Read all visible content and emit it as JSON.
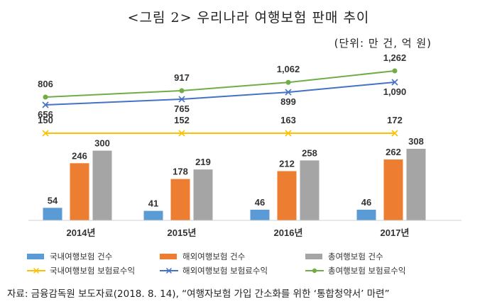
{
  "title": "<그림 2> 우리나라 여행보험 판매 추이",
  "unit": "(단위: 만 건, 억 원)",
  "source": "자료: 금융감독원 보도자료(2018. 8. 14), “여행자보험 가입 간소화를 위한 ‘통합청약서’ 마련”",
  "chart_data": {
    "type": "bar",
    "categories": [
      "2014년",
      "2015년",
      "2016년",
      "2017년"
    ],
    "bar_series": [
      {
        "name": "국내여행보험 건수",
        "color": "#5b9bd5",
        "values": [
          54,
          41,
          46,
          46
        ]
      },
      {
        "name": "해외여행보험 건수",
        "color": "#ed7d31",
        "values": [
          246,
          178,
          212,
          262
        ]
      },
      {
        "name": "총여행보험 건수",
        "color": "#a5a5a5",
        "values": [
          300,
          219,
          258,
          308
        ]
      }
    ],
    "line_series": [
      {
        "name": "국내여행보험 보험료수익",
        "color": "#ffc000",
        "marker": "x",
        "values": [
          150,
          152,
          163,
          172
        ]
      },
      {
        "name": "해외여행보험 보험료수익",
        "color": "#4472c4",
        "marker": "x",
        "values": [
          656,
          765,
          899,
          1090
        ],
        "labels": [
          "656",
          "765",
          "899",
          "1,090"
        ]
      },
      {
        "name": "총여행보험 보험료수익",
        "color": "#70ad47",
        "marker": "circle",
        "values": [
          806,
          917,
          1062,
          1262
        ],
        "labels": [
          "806",
          "917",
          "1,062",
          "1,262"
        ]
      }
    ],
    "grid": false,
    "legend_position": "bottom"
  }
}
